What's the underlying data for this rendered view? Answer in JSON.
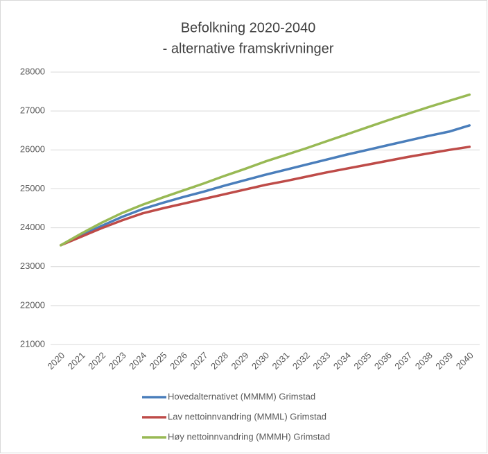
{
  "chart_data": {
    "type": "line",
    "title": "Befolkning 2020-2040",
    "subtitle": "- alternative framskrivninger",
    "categories": [
      "2020",
      "2021",
      "2022",
      "2023",
      "2024",
      "2025",
      "2026",
      "2027",
      "2028",
      "2029",
      "2030",
      "2031",
      "2032",
      "2033",
      "2034",
      "2035",
      "2036",
      "2037",
      "2038",
      "2039",
      "2040"
    ],
    "series": [
      {
        "name": "Hovedalternativet (MMMM) Grimstad",
        "color": "#4a7ebb",
        "values": [
          23550,
          23800,
          24050,
          24280,
          24480,
          24640,
          24790,
          24930,
          25080,
          25220,
          25360,
          25490,
          25620,
          25750,
          25880,
          26000,
          26120,
          26240,
          26360,
          26470,
          26630
        ]
      },
      {
        "name": "Lav nettoinnvandring (MMML) Grimstad",
        "color": "#be4b48",
        "values": [
          23550,
          23770,
          23990,
          24190,
          24370,
          24500,
          24620,
          24740,
          24860,
          24980,
          25100,
          25200,
          25310,
          25420,
          25520,
          25620,
          25720,
          25820,
          25910,
          26000,
          26080
        ]
      },
      {
        "name": "Høy nettoinnvandring (MMMH) Grimstad",
        "color": "#98b954",
        "values": [
          23550,
          23850,
          24130,
          24380,
          24590,
          24780,
          24960,
          25140,
          25330,
          25510,
          25700,
          25870,
          26040,
          26220,
          26400,
          26580,
          26760,
          26930,
          27100,
          27260,
          27420
        ]
      }
    ],
    "ylim": [
      21000,
      28000
    ],
    "yticks": [
      21000,
      22000,
      23000,
      24000,
      25000,
      26000,
      27000,
      28000
    ],
    "grid": true
  }
}
